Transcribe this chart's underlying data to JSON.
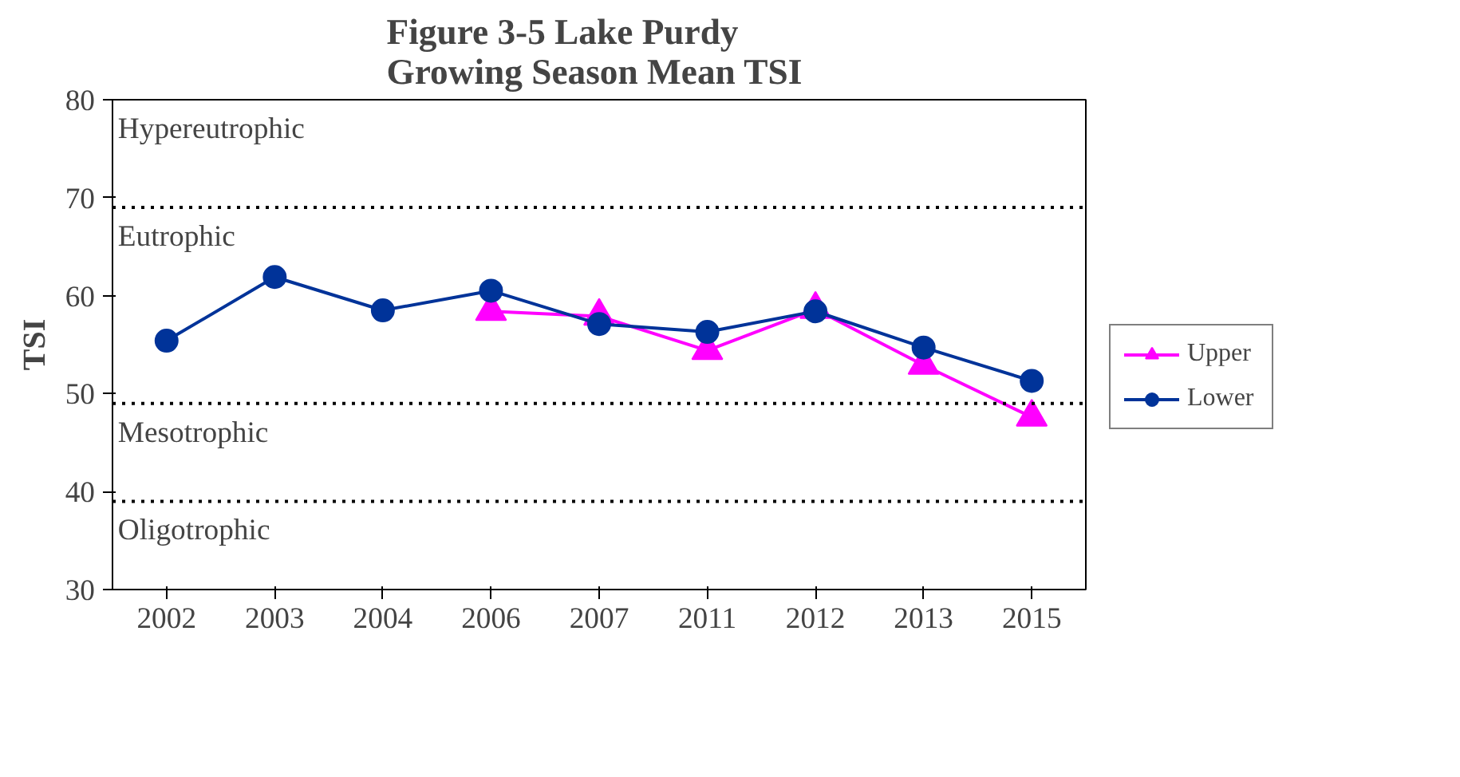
{
  "chart_data": {
    "type": "line",
    "title": "Figure 3-5 Lake Purdy\nGrowing Season  Mean TSI",
    "ylabel": "TSI",
    "categories": [
      "2002",
      "2003",
      "2004",
      "2006",
      "2007",
      "2011",
      "2012",
      "2013",
      "2015"
    ],
    "series": [
      {
        "name": "Upper",
        "color": "#ff00ff",
        "marker": "triangle",
        "values": [
          null,
          null,
          null,
          58.4,
          57.9,
          54.4,
          58.6,
          52.9,
          47.6
        ]
      },
      {
        "name": "Lower",
        "color": "#003399",
        "marker": "circle",
        "values": [
          55.4,
          61.9,
          58.5,
          60.5,
          57.1,
          56.3,
          58.4,
          54.7,
          51.3
        ]
      }
    ],
    "ylim": [
      30,
      80
    ],
    "yticks": [
      30,
      40,
      50,
      60,
      70,
      80
    ],
    "grid": false,
    "legend": "right",
    "line_style": "solid",
    "ref_lines": [
      {
        "axis": "y",
        "value": 69,
        "line_style": "dotted",
        "color": "#000000"
      },
      {
        "axis": "y",
        "value": 49,
        "line_style": "dotted",
        "color": "#000000"
      },
      {
        "axis": "y",
        "value": 39,
        "line_style": "dotted",
        "color": "#000000"
      }
    ],
    "annotations": [
      "Hypereutrophic",
      "Eutrophic",
      "Mesotrophic",
      "Oligotrophic"
    ]
  }
}
